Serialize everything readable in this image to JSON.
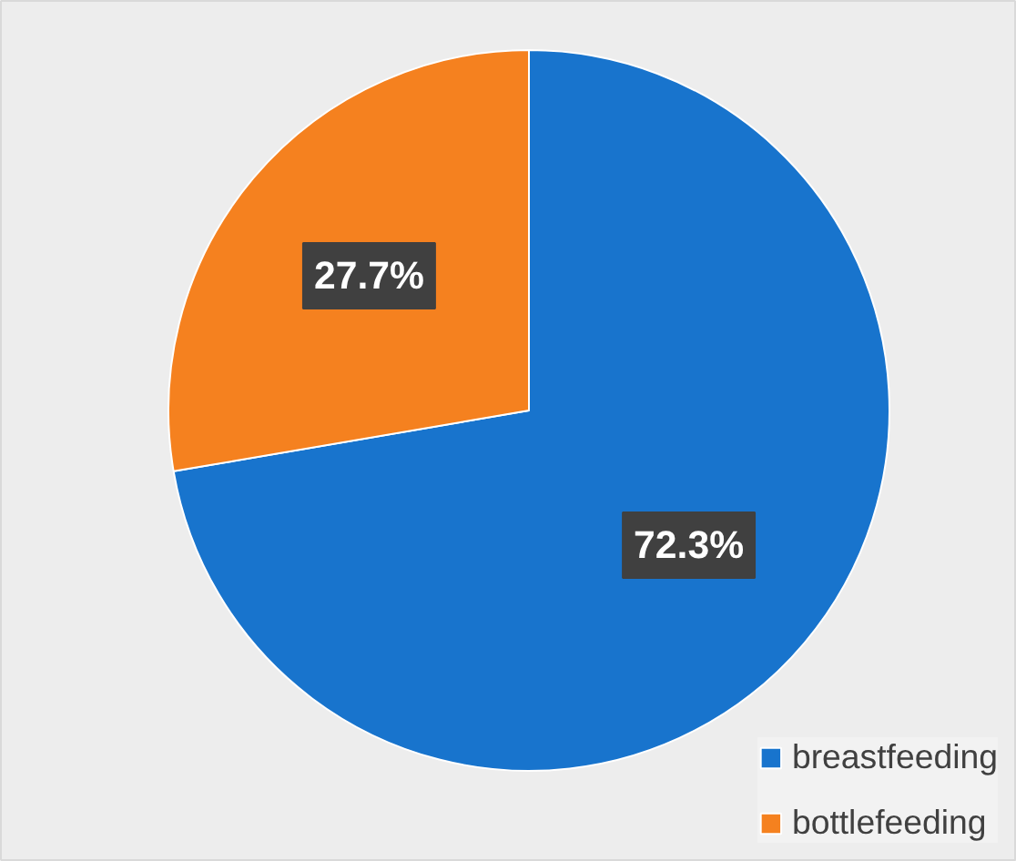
{
  "chart_data": {
    "type": "pie",
    "categories": [
      "breastfeeding",
      "bottlefeeding"
    ],
    "values": [
      72.3,
      27.7
    ],
    "colors": [
      "#1874cd",
      "#f5811f"
    ],
    "value_labels": [
      "72.3%",
      "27.7%"
    ],
    "legend": "bottom right"
  }
}
